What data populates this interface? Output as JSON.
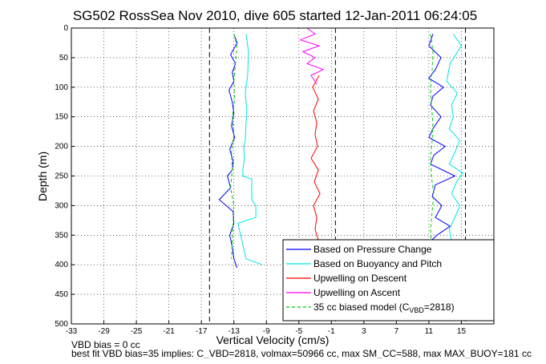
{
  "chart_data": {
    "type": "line",
    "title": "SG502 RossSea Nov 2010, dive 605 started 12-Jan-2011 06:24:05",
    "xlabel": "Vertical Velocity (cm/s)",
    "ylabel": "Depth (m)",
    "xlim": [
      -33,
      19
    ],
    "ylim": [
      500,
      0
    ],
    "x_ticks": [
      "-33",
      "-29",
      "-25",
      "-21",
      "-17",
      "-13",
      "-9",
      "-5",
      "-1",
      "3",
      "7",
      "11",
      "15"
    ],
    "y_ticks": [
      "0",
      "50",
      "100",
      "150",
      "200",
      "250",
      "300",
      "350",
      "400",
      "450",
      "500"
    ],
    "grid": true,
    "legend_position": "bottom-right",
    "reference_lines": [
      -16,
      -0.5,
      15.5
    ],
    "series": [
      {
        "name": "Based on Pressure Change",
        "color": "#0000ff",
        "segments": [
          {
            "x": [
              -13,
              -12.6,
              -13.4,
              -12.8,
              -13.2,
              -13,
              -13.6,
              -13.2,
              -13,
              -13.3,
              -12.9,
              -13.5,
              -13.1,
              -13.2,
              -13.8,
              -13.4,
              -14.8,
              -13.1,
              -13,
              -13.5,
              -13.2,
              -13,
              -12.6
            ],
            "y": [
              10,
              25,
              45,
              60,
              75,
              90,
              105,
              125,
              145,
              165,
              185,
              205,
              225,
              240,
              250,
              270,
              290,
              310,
              330,
              350,
              370,
              390,
              405
            ]
          },
          {
            "x": [
              11.5,
              11,
              12.5,
              11.8,
              11,
              12.8,
              11.5,
              11.2,
              12.5,
              11.5,
              11,
              13,
              11.6,
              11.2,
              14.2,
              11.8,
              11.4,
              12.6,
              11.8,
              13.6,
              12,
              11.2,
              12.2
            ],
            "y": [
              10,
              30,
              50,
              70,
              85,
              100,
              115,
              130,
              150,
              170,
              185,
              200,
              215,
              230,
              250,
              265,
              285,
              300,
              320,
              335,
              350,
              360,
              365
            ]
          }
        ]
      },
      {
        "name": "Based on Buoyancy and Pitch",
        "color": "#00e5e5",
        "segments": [
          {
            "x": [
              -11.5,
              -11.2,
              -11.3,
              -11.6,
              -11.4,
              -11.5,
              -11.6,
              -11.8,
              -11.7,
              -11.9,
              -11.9,
              -10.8,
              -10.8,
              -10.3,
              -10.3,
              -12.5,
              -12,
              -11.5,
              -9.5
            ],
            "y": [
              10,
              40,
              80,
              110,
              140,
              160,
              190,
              200,
              220,
              240,
              250,
              255,
              290,
              300,
              320,
              330,
              360,
              390,
              400
            ]
          },
          {
            "x": [
              14,
              15,
              13.6,
              13.2,
              14.5,
              13.8,
              14,
              13.5,
              14.8,
              14.2,
              13.5,
              15.2,
              14.4,
              13.8,
              14.8,
              14.2,
              13.5,
              13.8
            ],
            "y": [
              10,
              30,
              60,
              90,
              110,
              130,
              150,
              170,
              190,
              210,
              230,
              245,
              260,
              280,
              300,
              320,
              340,
              360
            ]
          }
        ]
      },
      {
        "name": "Upwelling on Descent",
        "color": "#ff0000",
        "segments": [
          {
            "x": [
              -2.5,
              -3.3,
              -2.6,
              -3.2,
              -2.8,
              -3,
              -2.7,
              -3.5,
              -2.6,
              -3.1,
              -2.4,
              -3.2,
              -2.8,
              -3,
              -2.7,
              -2.2
            ],
            "y": [
              80,
              100,
              120,
              140,
              160,
              180,
              200,
              220,
              240,
              260,
              280,
              300,
              320,
              340,
              355,
              365
            ]
          }
        ]
      },
      {
        "name": "Upwelling on Ascent",
        "color": "#ff00ff",
        "segments": [
          {
            "x": [
              -4,
              -3,
              -4.8,
              -2.5,
              -4.5,
              -3,
              -4,
              -2,
              -3.5,
              -2.8
            ],
            "y": [
              0,
              10,
              20,
              30,
              40,
              50,
              60,
              70,
              80,
              95
            ]
          }
        ]
      },
      {
        "name": "35 cc biased model (C",
        "subscript": "VBD",
        "suffix": "=2818)",
        "color": "#00cc00",
        "dashed": true,
        "segments": [
          {
            "x": [
              -13,
              -12.6,
              -12.8,
              -13,
              -12.9,
              -13.2,
              -13,
              -13.3,
              -13.2,
              -13.4,
              -13,
              -13.1,
              -13.2,
              -13.3
            ],
            "y": [
              10,
              30,
              60,
              90,
              120,
              150,
              180,
              210,
              240,
              270,
              300,
              330,
              360,
              390
            ]
          },
          {
            "x": [
              11.2,
              11.5,
              11.4,
              11.2,
              11.3,
              11.5,
              11.4,
              11.2,
              11.3,
              11.6,
              11.4,
              11.2,
              11.3
            ],
            "y": [
              10,
              40,
              70,
              100,
              130,
              160,
              190,
              220,
              250,
              280,
              310,
              340,
              360
            ]
          }
        ]
      }
    ]
  },
  "notes": {
    "vbd_bias": "VBD bias = 0 cc",
    "best_fit": "best fit VBD bias=35 implies: C_VBD=2818, volmax=50966 cc, max SM_CC=588, max MAX_BUOY=181 cc"
  }
}
